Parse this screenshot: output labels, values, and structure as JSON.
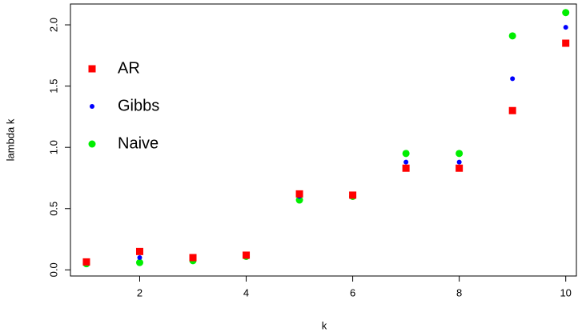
{
  "chart_data": {
    "type": "scatter",
    "x_label": "k",
    "y_label": "lambda k",
    "x": [
      1,
      2,
      3,
      4,
      5,
      6,
      7,
      8,
      9,
      10
    ],
    "series": [
      {
        "name": "AR",
        "color": "#ff0000",
        "marker": "square",
        "values": [
          0.065,
          0.15,
          0.1,
          0.12,
          0.62,
          0.61,
          0.83,
          0.83,
          1.3,
          1.85
        ]
      },
      {
        "name": "Gibbs",
        "color": "#0000ff",
        "marker": "small-circle",
        "values": [
          0.055,
          0.1,
          0.09,
          0.12,
          0.6,
          0.61,
          0.88,
          0.88,
          1.56,
          1.98
        ]
      },
      {
        "name": "Naive",
        "color": "#00ee00",
        "marker": "circle",
        "values": [
          0.05,
          0.06,
          0.075,
          0.11,
          0.57,
          0.6,
          0.95,
          0.95,
          1.91,
          2.1
        ]
      }
    ],
    "xlim": [
      0.7,
      10.2
    ],
    "ylim": [
      -0.05,
      2.17
    ],
    "xticks": [
      2,
      4,
      6,
      8,
      10
    ],
    "yticks": [
      {
        "value": 0,
        "label": "0.0"
      },
      {
        "value": 0.5,
        "label": "0.5"
      },
      {
        "value": 1,
        "label": "1.0"
      },
      {
        "value": 1.5,
        "label": "1.5"
      },
      {
        "value": 2,
        "label": "2.0"
      }
    ],
    "legend": "topleft"
  }
}
